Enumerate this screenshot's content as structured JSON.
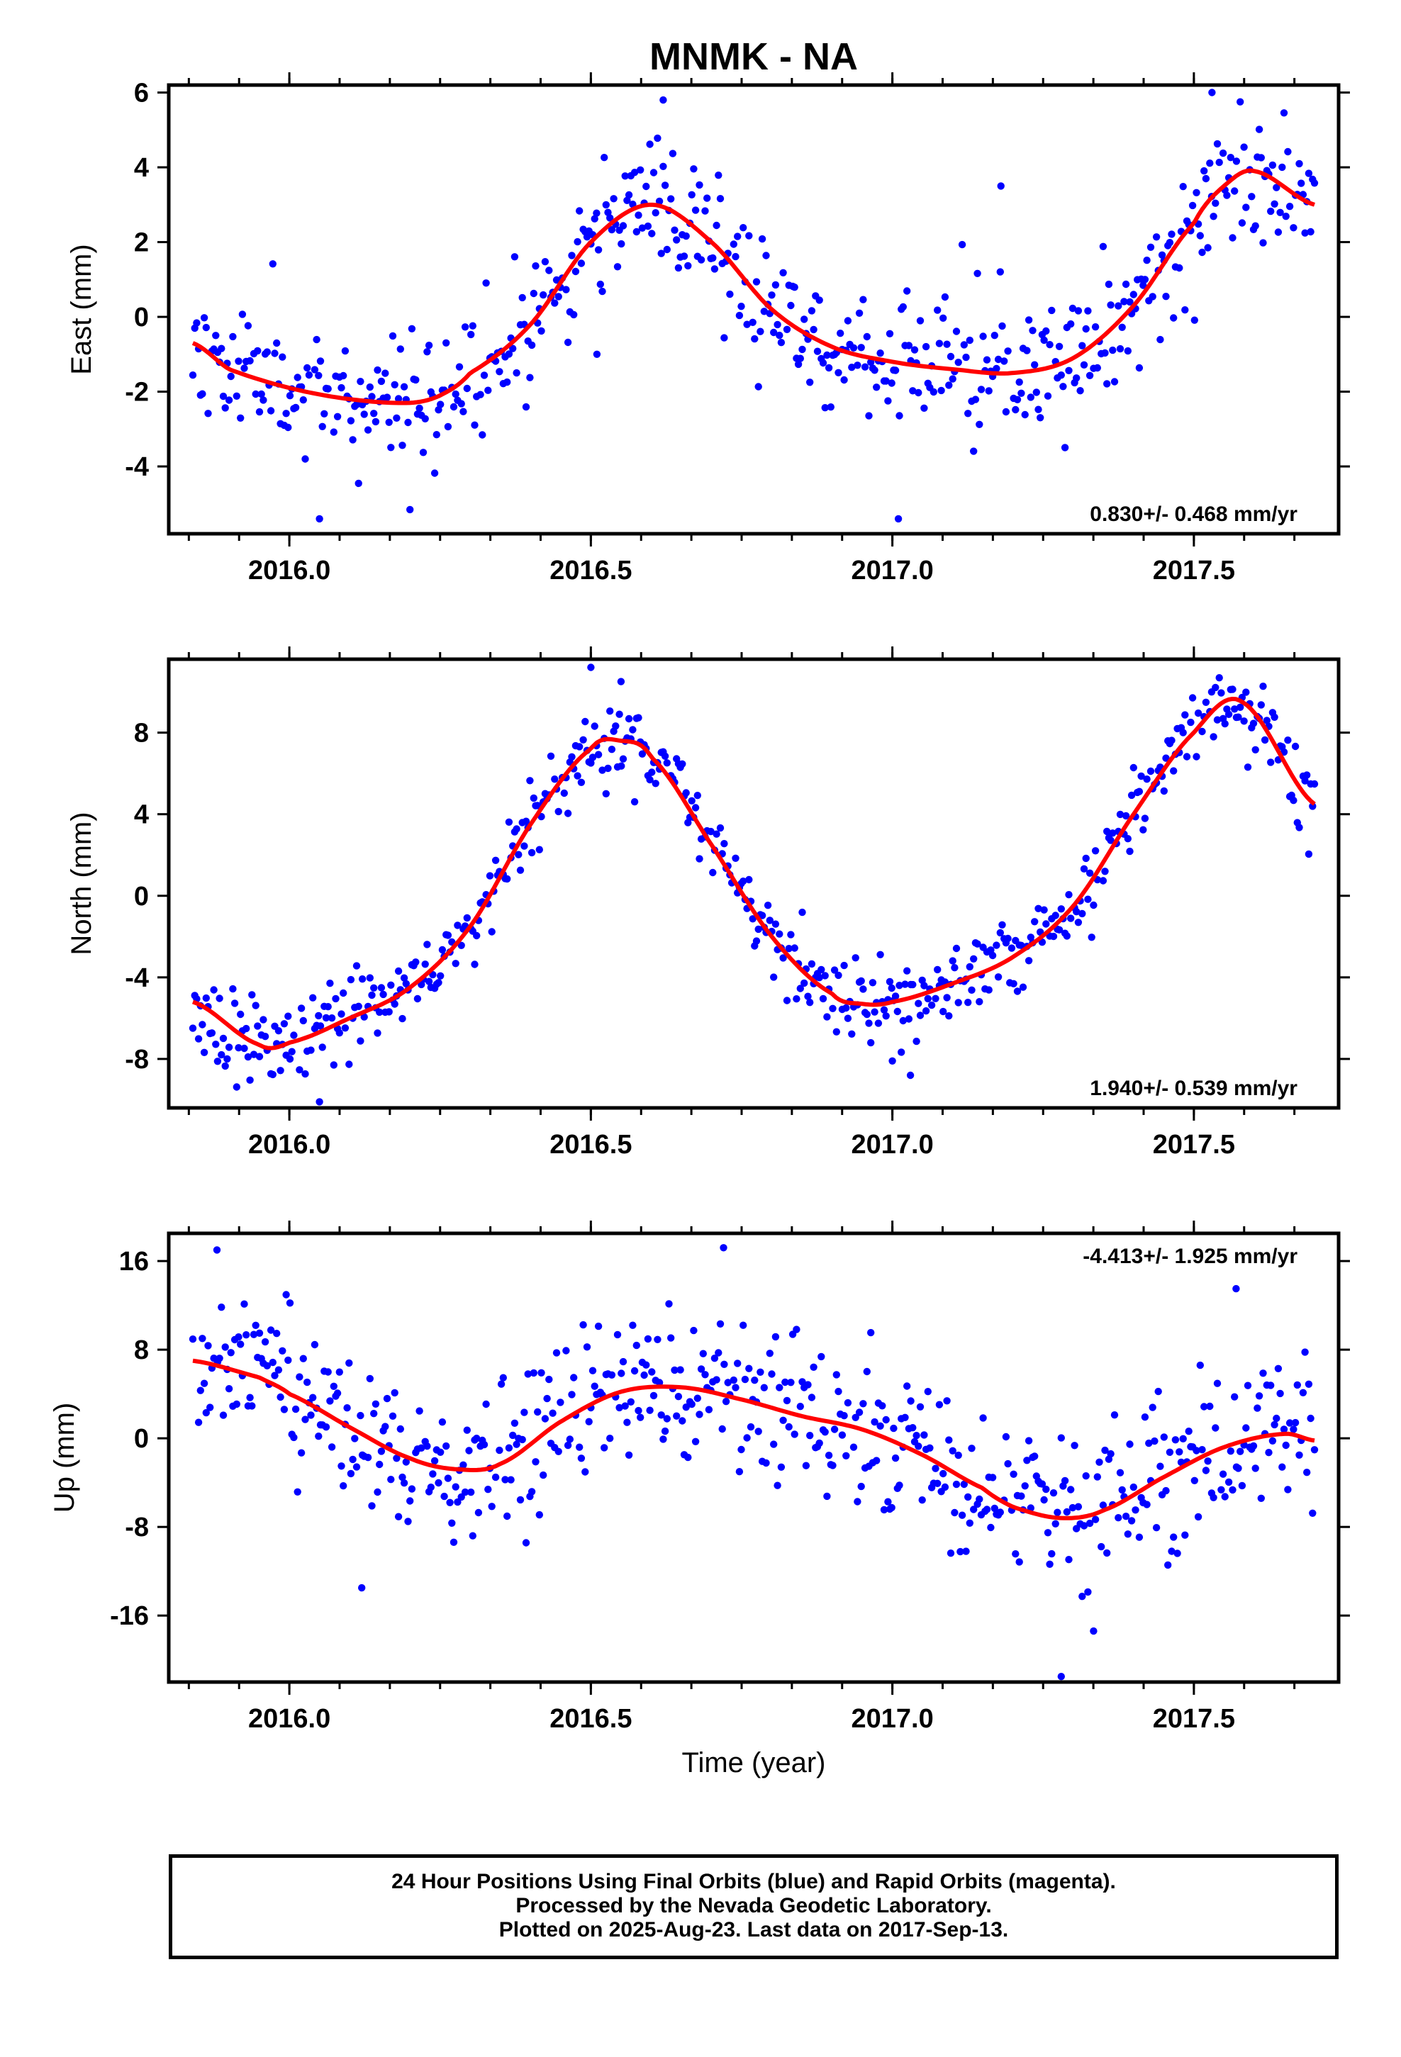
{
  "title": "MNMK - NA",
  "colors": {
    "data_points": "#0000ff",
    "fit_line": "#ff0000",
    "axis": "#000000"
  },
  "footer": {
    "line1": "24 Hour Positions Using Final Orbits (blue) and Rapid Orbits (magenta).",
    "line2": "Processed by the Nevada Geodetic Laboratory.",
    "line3": "Plotted on 2025-Aug-23. Last data on 2017-Sep-13."
  },
  "chart_data": [
    {
      "type": "scatter",
      "component": "east",
      "ylabel": "East (mm)",
      "xlabel": "",
      "xlim": [
        2015.8,
        2017.74
      ],
      "ylim": [
        -5.8,
        6.2
      ],
      "xticks": [
        "2016.0",
        "2016.5",
        "2017.0",
        "2017.5"
      ],
      "yticks": [
        "6",
        "4",
        "2",
        "0",
        "-2",
        "-4"
      ],
      "rate_text": "0.830+/- 0.468 mm/yr",
      "rate_position": "bottom-right",
      "fit": {
        "x": [
          2015.84,
          2015.9,
          2016.0,
          2016.1,
          2016.2,
          2016.25,
          2016.3,
          2016.4,
          2016.5,
          2016.6,
          2016.7,
          2016.8,
          2016.9,
          2017.0,
          2017.1,
          2017.2,
          2017.3,
          2017.4,
          2017.5,
          2017.55,
          2017.6,
          2017.7
        ],
        "y": [
          -0.7,
          -1.4,
          -1.9,
          -2.2,
          -2.3,
          -2.1,
          -1.5,
          -0.2,
          2.0,
          3.0,
          2.0,
          0.2,
          -0.8,
          -1.2,
          -1.4,
          -1.5,
          -1.1,
          0.3,
          2.5,
          3.5,
          3.9,
          3.0
        ]
      },
      "seed": 11,
      "noise_sd": 0.9,
      "n_points": 590,
      "outliers": [
        [
          2016.62,
          5.8
        ],
        [
          2017.18,
          3.5
        ],
        [
          2017.53,
          6.0
        ],
        [
          2016.51,
          -1.0
        ],
        [
          2017.01,
          -5.4
        ],
        [
          2016.05,
          -5.4
        ]
      ]
    },
    {
      "type": "scatter",
      "component": "north",
      "ylabel": "North (mm)",
      "xlabel": "",
      "xlim": [
        2015.8,
        2017.74
      ],
      "ylim": [
        -10.4,
        11.6
      ],
      "xticks": [
        "2016.0",
        "2016.5",
        "2017.0",
        "2017.5"
      ],
      "yticks": [
        "8",
        "4",
        "0",
        "-4",
        "-8"
      ],
      "rate_text": "1.940+/- 0.539 mm/yr",
      "rate_position": "bottom-right",
      "fit": {
        "x": [
          2015.84,
          2015.95,
          2016.0,
          2016.1,
          2016.2,
          2016.3,
          2016.4,
          2016.5,
          2016.55,
          2016.6,
          2016.7,
          2016.8,
          2016.9,
          2016.95,
          2017.0,
          2017.1,
          2017.2,
          2017.3,
          2017.4,
          2017.5,
          2017.58,
          2017.7
        ],
        "y": [
          -5.2,
          -7.3,
          -7.2,
          -6.0,
          -4.5,
          -1.5,
          3.5,
          7.2,
          7.6,
          6.8,
          2.5,
          -2.0,
          -4.8,
          -5.3,
          -5.2,
          -4.3,
          -3.0,
          -0.5,
          4.0,
          8.0,
          9.5,
          4.5
        ]
      },
      "seed": 23,
      "noise_sd": 1.0,
      "n_points": 590,
      "outliers": [
        [
          2016.5,
          11.2
        ],
        [
          2016.55,
          10.5
        ],
        [
          2017.03,
          -8.8
        ],
        [
          2017.0,
          -8.1
        ],
        [
          2016.05,
          -10.1
        ]
      ]
    },
    {
      "type": "scatter",
      "component": "up",
      "ylabel": "Up (mm)",
      "xlabel": "Time (year)",
      "xlim": [
        2015.8,
        2017.74
      ],
      "ylim": [
        -22.0,
        18.5
      ],
      "xticks": [
        "2016.0",
        "2016.5",
        "2017.0",
        "2017.5"
      ],
      "yticks": [
        "16",
        "8",
        "0",
        "-8",
        "-16"
      ],
      "rate_text": "-4.413+/- 1.925 mm/yr",
      "rate_position": "top-right",
      "fit": {
        "x": [
          2015.84,
          2015.95,
          2016.0,
          2016.1,
          2016.2,
          2016.28,
          2016.35,
          2016.45,
          2016.55,
          2016.65,
          2016.75,
          2016.85,
          2016.95,
          2017.05,
          2017.15,
          2017.2,
          2017.28,
          2017.35,
          2017.45,
          2017.55,
          2017.65,
          2017.7
        ],
        "y": [
          7.0,
          5.5,
          4.0,
          1.0,
          -1.8,
          -2.8,
          -2.3,
          1.5,
          4.2,
          4.6,
          3.5,
          2.0,
          0.8,
          -1.5,
          -4.5,
          -6.2,
          -7.2,
          -6.5,
          -3.5,
          -0.8,
          0.4,
          -0.2
        ]
      },
      "seed": 37,
      "noise_sd": 3.6,
      "n_points": 590,
      "outliers": [
        [
          2017.28,
          -21.5
        ],
        [
          2016.72,
          17.2
        ],
        [
          2015.88,
          17.0
        ],
        [
          2016.12,
          -13.5
        ],
        [
          2017.57,
          13.5
        ]
      ]
    }
  ]
}
